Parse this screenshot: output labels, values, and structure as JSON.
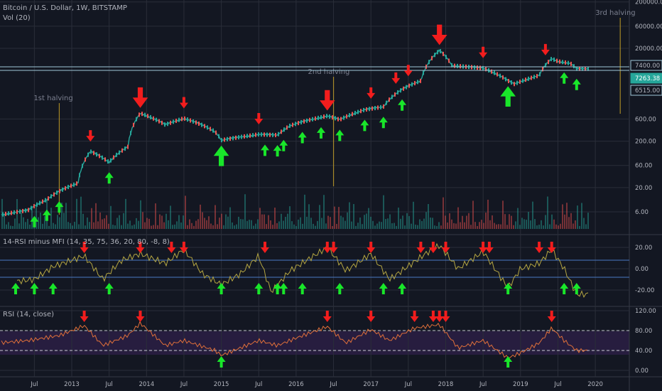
{
  "chart_data": {
    "type": "line",
    "title": "Bitcoin / U.S. Dollar, 1W, BITSTAMP",
    "volume_label": "Vol (20)",
    "x_ticks": [
      "Jul",
      "2013",
      "Jul",
      "2014",
      "Jul",
      "2015",
      "Jul",
      "2016",
      "Jul",
      "2017",
      "Jul",
      "2018",
      "Jul",
      "2019",
      "Jul",
      "2020"
    ],
    "price_axis": {
      "scale": "log",
      "ticks": [
        "200000.00",
        "60000.00",
        "20000.00",
        "600.00",
        "200.00",
        "60.00",
        "20.00",
        "6.00"
      ]
    },
    "price_levels": {
      "resistance": "7400.00",
      "current": "7263.38",
      "support": "6515.00"
    },
    "halvings": [
      {
        "label": "1st halving",
        "date": "2012-11"
      },
      {
        "label": "2nd halving",
        "date": "2016-07"
      },
      {
        "label": "3rd halving",
        "date": "2020-05"
      }
    ],
    "price_series": [
      {
        "date": "2012-01",
        "close": 5
      },
      {
        "date": "2012-06",
        "close": 6.5
      },
      {
        "date": "2012-09",
        "close": 11
      },
      {
        "date": "2013-02",
        "close": 25
      },
      {
        "date": "2013-04",
        "close": 120
      },
      {
        "date": "2013-07",
        "close": 70
      },
      {
        "date": "2013-10",
        "close": 150
      },
      {
        "date": "2013-12",
        "close": 800
      },
      {
        "date": "2014-04",
        "close": 450
      },
      {
        "date": "2014-07",
        "close": 620
      },
      {
        "date": "2014-12",
        "close": 320
      },
      {
        "date": "2015-01",
        "close": 210
      },
      {
        "date": "2015-07",
        "close": 280
      },
      {
        "date": "2015-10",
        "close": 270
      },
      {
        "date": "2015-12",
        "close": 430
      },
      {
        "date": "2016-06",
        "close": 700
      },
      {
        "date": "2016-08",
        "close": 580
      },
      {
        "date": "2016-12",
        "close": 950
      },
      {
        "date": "2017-03",
        "close": 1100
      },
      {
        "date": "2017-06",
        "close": 2600
      },
      {
        "date": "2017-09",
        "close": 4000
      },
      {
        "date": "2017-12",
        "close": 18000
      },
      {
        "date": "2018-02",
        "close": 8500
      },
      {
        "date": "2018-07",
        "close": 7500
      },
      {
        "date": "2018-11",
        "close": 4000
      },
      {
        "date": "2018-12",
        "close": 3400
      },
      {
        "date": "2019-04",
        "close": 5200
      },
      {
        "date": "2019-06",
        "close": 12000
      },
      {
        "date": "2019-07",
        "close": 10500
      },
      {
        "date": "2019-09",
        "close": 9500
      },
      {
        "date": "2019-10",
        "close": 7263.38
      }
    ],
    "indicator1": {
      "label": "14-RSI minus MFI (14, 35, 75, 36, 20, 80, -8, 8)",
      "ticks": [
        "20.00",
        "0.00",
        "-20.00"
      ],
      "levels": [
        8,
        -8
      ],
      "series": [
        {
          "date": "2012-01",
          "value": -5
        },
        {
          "date": "2012-04",
          "value": -12
        },
        {
          "date": "2012-07",
          "value": -10
        },
        {
          "date": "2012-10",
          "value": 2
        },
        {
          "date": "2013-01",
          "value": 8
        },
        {
          "date": "2013-03",
          "value": 12
        },
        {
          "date": "2013-06",
          "value": -10
        },
        {
          "date": "2013-09",
          "value": 8
        },
        {
          "date": "2013-12",
          "value": 14
        },
        {
          "date": "2014-04",
          "value": 5
        },
        {
          "date": "2014-07",
          "value": 18
        },
        {
          "date": "2014-10",
          "value": -5
        },
        {
          "date": "2015-01",
          "value": -15
        },
        {
          "date": "2015-04",
          "value": -5
        },
        {
          "date": "2015-07",
          "value": 12
        },
        {
          "date": "2015-09",
          "value": -22
        },
        {
          "date": "2015-12",
          "value": -2
        },
        {
          "date": "2016-06",
          "value": 20
        },
        {
          "date": "2016-09",
          "value": -2
        },
        {
          "date": "2017-01",
          "value": 14
        },
        {
          "date": "2017-04",
          "value": -10
        },
        {
          "date": "2017-10",
          "value": 15
        },
        {
          "date": "2017-12",
          "value": 22
        },
        {
          "date": "2018-03",
          "value": 0
        },
        {
          "date": "2018-07",
          "value": 16
        },
        {
          "date": "2018-11",
          "value": -18
        },
        {
          "date": "2019-01",
          "value": 0
        },
        {
          "date": "2019-04",
          "value": 5
        },
        {
          "date": "2019-06",
          "value": 18
        },
        {
          "date": "2019-08",
          "value": 0
        },
        {
          "date": "2019-10",
          "value": -24
        }
      ]
    },
    "rsi": {
      "label": "RSI (14, close)",
      "ticks": [
        "120.00",
        "80.00",
        "40.00",
        "0.00"
      ],
      "levels": [
        80,
        40
      ],
      "series": [
        {
          "date": "2012-01",
          "value": 55
        },
        {
          "date": "2012-06",
          "value": 60
        },
        {
          "date": "2012-11",
          "value": 70
        },
        {
          "date": "2013-03",
          "value": 90
        },
        {
          "date": "2013-06",
          "value": 50
        },
        {
          "date": "2013-10",
          "value": 70
        },
        {
          "date": "2013-12",
          "value": 95
        },
        {
          "date": "2014-04",
          "value": 50
        },
        {
          "date": "2014-07",
          "value": 60
        },
        {
          "date": "2014-12",
          "value": 40
        },
        {
          "date": "2015-01",
          "value": 30
        },
        {
          "date": "2015-07",
          "value": 60
        },
        {
          "date": "2015-10",
          "value": 50
        },
        {
          "date": "2016-01",
          "value": 65
        },
        {
          "date": "2016-06",
          "value": 88
        },
        {
          "date": "2016-09",
          "value": 55
        },
        {
          "date": "2017-01",
          "value": 82
        },
        {
          "date": "2017-04",
          "value": 60
        },
        {
          "date": "2017-08",
          "value": 85
        },
        {
          "date": "2017-12",
          "value": 92
        },
        {
          "date": "2018-03",
          "value": 45
        },
        {
          "date": "2018-07",
          "value": 60
        },
        {
          "date": "2018-11",
          "value": 25
        },
        {
          "date": "2019-01",
          "value": 35
        },
        {
          "date": "2019-04",
          "value": 55
        },
        {
          "date": "2019-06",
          "value": 85
        },
        {
          "date": "2019-08",
          "value": 60
        },
        {
          "date": "2019-10",
          "value": 40
        }
      ]
    },
    "signals": {
      "price_up": [
        "2012-07",
        "2012-09",
        "2012-11",
        "2013-07",
        "2015-01",
        "2015-08",
        "2015-10",
        "2015-11",
        "2016-02",
        "2016-05",
        "2016-08",
        "2016-12",
        "2017-03",
        "2017-06",
        "2018-11",
        "2019-08",
        "2019-10"
      ],
      "price_down": [
        "2013-04",
        "2013-12",
        "2014-07",
        "2015-07",
        "2016-06",
        "2017-01",
        "2017-05",
        "2017-07",
        "2017-12",
        "2018-07",
        "2019-05"
      ],
      "ind_up": [
        "2012-04",
        "2012-07",
        "2012-10",
        "2013-07",
        "2015-01",
        "2015-07",
        "2015-10",
        "2015-11",
        "2016-02",
        "2016-08",
        "2017-03",
        "2017-06",
        "2018-11",
        "2019-08",
        "2019-10"
      ],
      "ind_down": [
        "2013-03",
        "2013-12",
        "2014-05",
        "2014-07",
        "2015-08",
        "2016-06",
        "2016-07",
        "2017-01",
        "2017-09",
        "2017-11",
        "2018-01",
        "2018-07",
        "2018-08",
        "2019-04",
        "2019-06"
      ],
      "rsi_up": [
        "2015-01",
        "2018-11"
      ],
      "rsi_down": [
        "2013-03",
        "2013-12",
        "2016-06",
        "2017-01",
        "2017-08",
        "2017-11",
        "2017-12",
        "2018-01",
        "2019-06"
      ]
    }
  }
}
